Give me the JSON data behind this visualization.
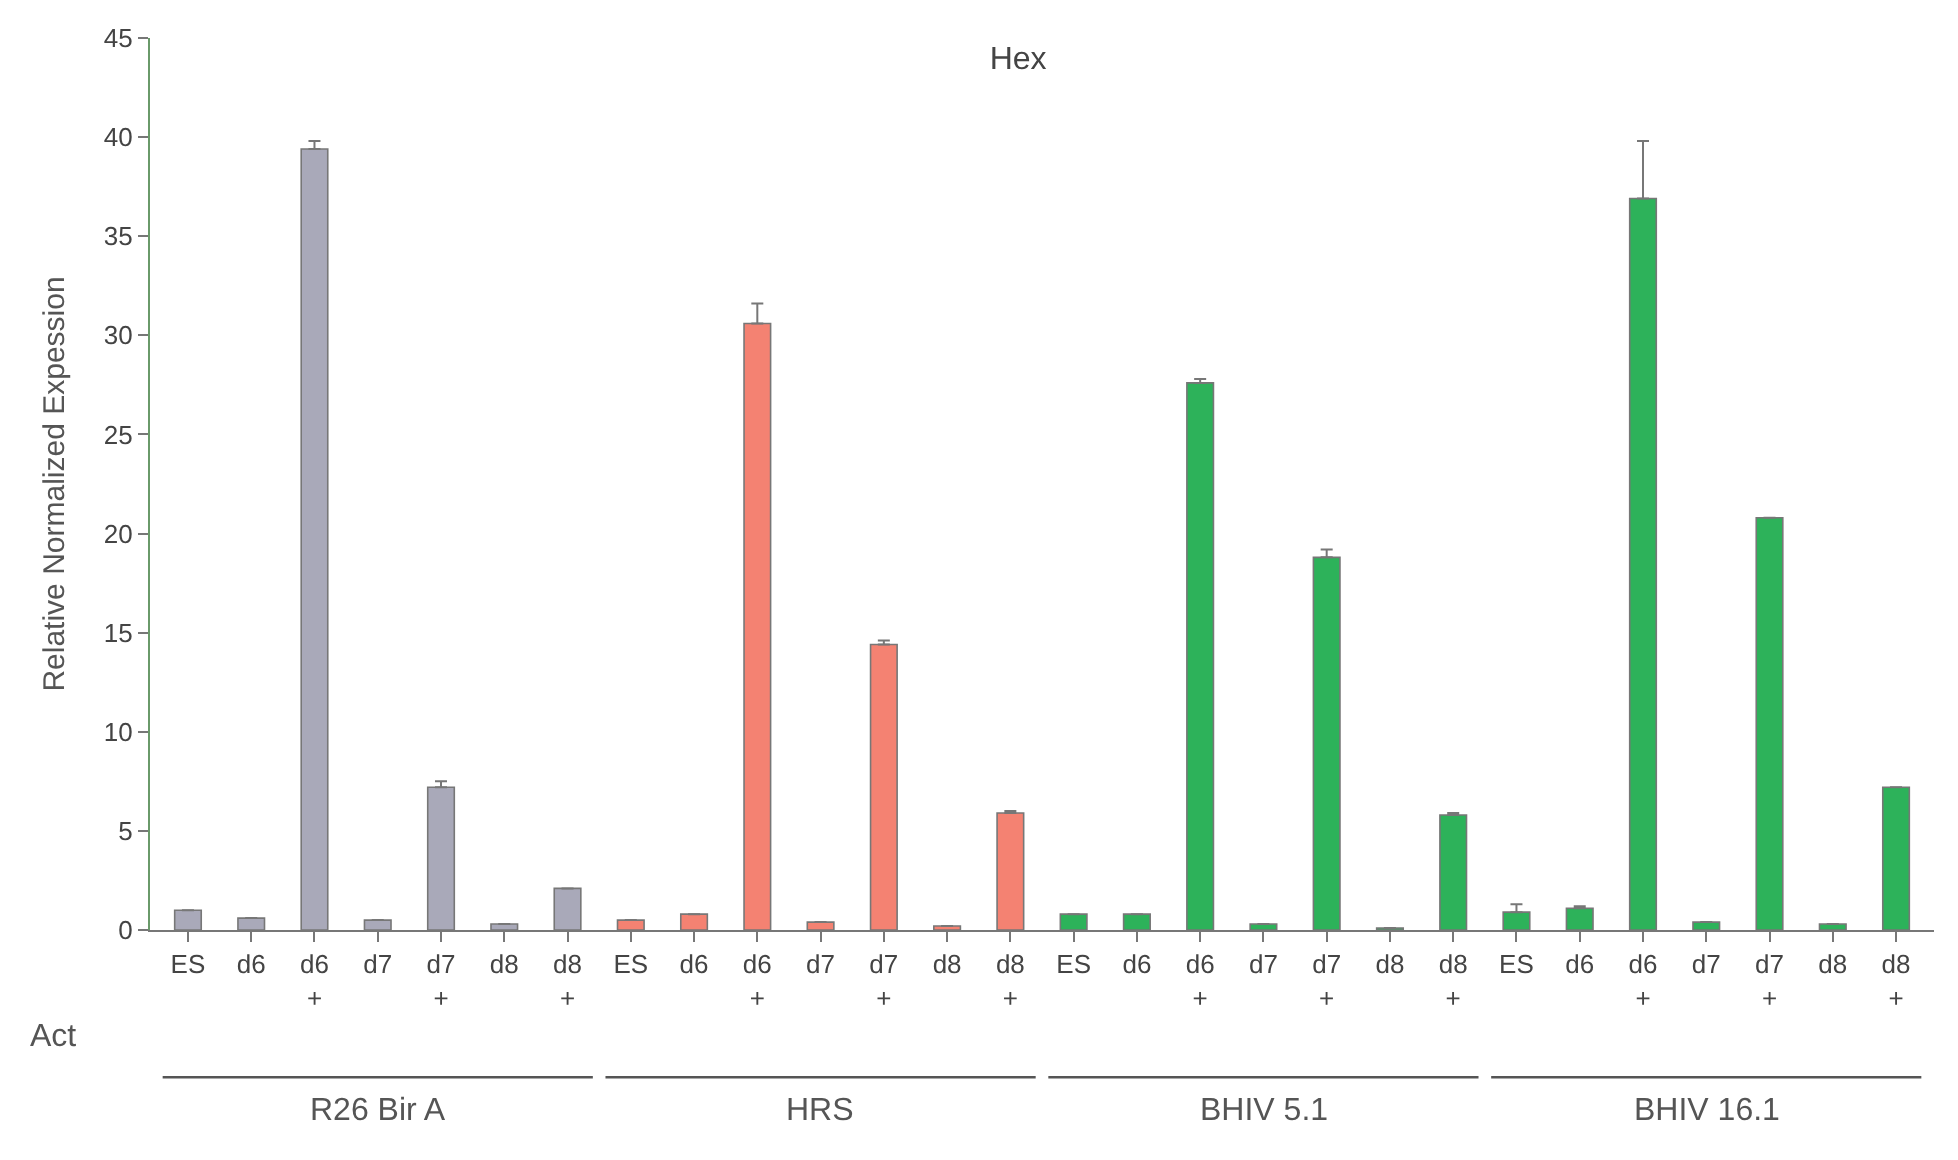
{
  "chart_data": {
    "type": "bar",
    "title": "Hex",
    "ylabel": "Relative Normalized Expession",
    "categories": [
      "ES",
      "d6",
      "d6\n+",
      "d7",
      "d7\n+",
      "d8",
      "d8\n+",
      "ES",
      "d6",
      "d6\n+",
      "d7",
      "d7\n+",
      "d8",
      "d8\n+",
      "ES",
      "d6",
      "d6\n+",
      "d7",
      "d7\n+",
      "d8",
      "d8\n+",
      "ES",
      "d6",
      "d6\n+",
      "d7",
      "d7\n+",
      "d8",
      "d8\n+"
    ],
    "values": [
      1.0,
      0.6,
      39.4,
      0.5,
      7.2,
      0.3,
      2.1,
      0.5,
      0.8,
      30.6,
      0.4,
      14.4,
      0.2,
      5.9,
      0.8,
      0.8,
      27.6,
      0.3,
      18.8,
      0.1,
      5.8,
      0.9,
      1.1,
      36.9,
      0.4,
      20.8,
      0.3,
      7.2
    ],
    "errors": [
      null,
      null,
      0.4,
      null,
      0.3,
      null,
      null,
      null,
      null,
      1.0,
      null,
      0.2,
      null,
      0.1,
      null,
      null,
      0.2,
      null,
      0.4,
      null,
      0.1,
      0.4,
      0.1,
      2.9,
      null,
      null,
      null,
      null
    ],
    "colors": [
      "#a9a9b9",
      "#a9a9b9",
      "#a9a9b9",
      "#a9a9b9",
      "#a9a9b9",
      "#a9a9b9",
      "#a9a9b9",
      "#f48272",
      "#f48272",
      "#f48272",
      "#f48272",
      "#f48272",
      "#f48272",
      "#f48272",
      "#2db25a",
      "#2db25a",
      "#2db25a",
      "#2db25a",
      "#2db25a",
      "#2db25a",
      "#2db25a",
      "#2db25a",
      "#2db25a",
      "#2db25a",
      "#2db25a",
      "#2db25a",
      "#2db25a",
      "#2db25a"
    ],
    "ylim": [
      0,
      45
    ],
    "yticks": [
      0,
      5,
      10,
      15,
      20,
      25,
      30,
      35,
      40,
      45
    ],
    "annotations": [
      "Act",
      "R26 Bir A",
      "HRS",
      "BHIV 5.1",
      "BHIV 16.1"
    ]
  }
}
